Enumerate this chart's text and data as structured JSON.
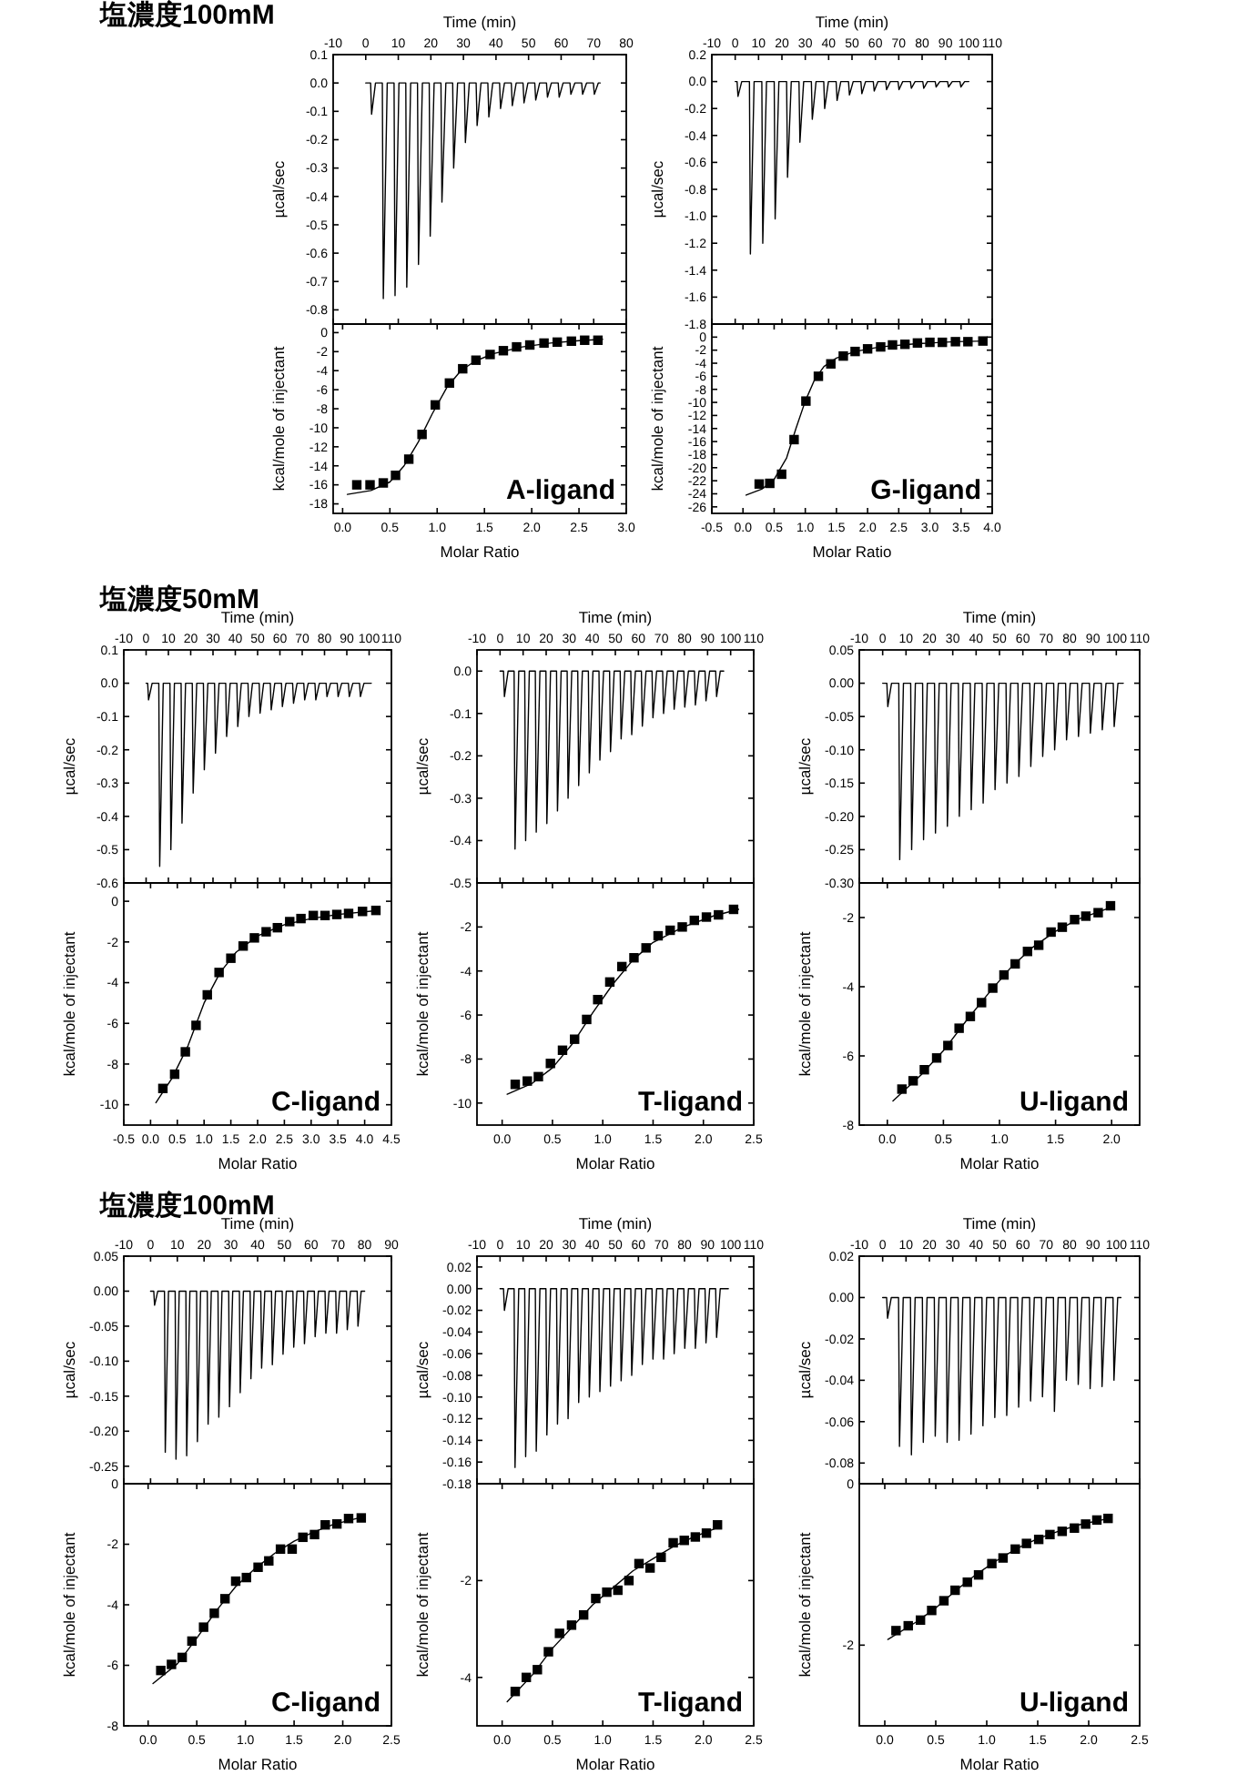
{
  "chart_data": [
    {
      "type": "line",
      "title": "塩濃度100mM",
      "xlabel": "Time (min)",
      "ylabel": "µcal/sec",
      "xlim": [
        -10,
        80
      ],
      "ylim": [
        -0.85,
        0.1
      ],
      "xticks": [
        -10,
        0,
        10,
        20,
        30,
        40,
        50,
        60,
        70,
        80
      ],
      "yticks": [
        0.1,
        {
          "value": 0,
          "label": "0.0"
        },
        -0.1,
        -0.2,
        -0.3,
        -0.4,
        -0.5,
        -0.6,
        -0.7,
        -0.8
      ],
      "series": [
        {
          "color": "#000000",
          "x": [
            0,
            1.5,
            1.8,
            3,
            5.1,
            5.4,
            6.6,
            8.7,
            9,
            10.2,
            12.3,
            12.6,
            13.8,
            15.9,
            16.2,
            17.4,
            19.5,
            19.8,
            21,
            23.1,
            23.4,
            24.6,
            26.7,
            27,
            28.2,
            30.3,
            30.6,
            31.8,
            33.9,
            34.2,
            35.4,
            37.5,
            37.8,
            39,
            41.1,
            41.4,
            42.6,
            44.7,
            45,
            46.2,
            48.3,
            48.6,
            49.8,
            51.9,
            52.2,
            53.4,
            55.5,
            55.8,
            57,
            59.1,
            59.4,
            60.6,
            62.7,
            63,
            64.2,
            66.3,
            66.6,
            67.8,
            69.9,
            70.2,
            71.4,
            72
          ],
          "values": [
            0,
            0,
            -0.11,
            0,
            0,
            -0.76,
            0,
            0,
            -0.75,
            0,
            0,
            -0.72,
            0,
            0,
            -0.64,
            0,
            0,
            -0.54,
            0,
            0,
            -0.42,
            0,
            0,
            -0.3,
            0,
            0,
            -0.21,
            0,
            0,
            -0.15,
            0,
            0,
            -0.12,
            0,
            0,
            -0.09,
            0,
            0,
            -0.08,
            0,
            0,
            -0.07,
            0,
            0,
            -0.06,
            0,
            0,
            -0.05,
            0,
            0,
            -0.05,
            0,
            0,
            -0.04,
            0,
            0,
            -0.04,
            0,
            0,
            -0.04,
            0,
            0
          ]
        }
      ]
    },
    {
      "type": "scatter",
      "xlabel": "Molar Ratio",
      "ylabel": "kcal/mole of injectant",
      "xlim": [
        -0.1,
        3
      ],
      "ylim": [
        -19,
        0.9
      ],
      "xticks": [
        {
          "value": 0,
          "label": "0.0"
        },
        0.5,
        {
          "value": 1,
          "label": "1.0"
        },
        1.5,
        {
          "value": 2,
          "label": "2.0"
        },
        2.5,
        {
          "value": 3,
          "label": "3.0"
        }
      ],
      "yticks": [
        0,
        -2,
        -4,
        -6,
        -8,
        -10,
        -12,
        -14,
        -16,
        -18
      ],
      "annotations": [
        "A-ligand"
      ],
      "series": [
        {
          "color": "#000000",
          "marker": "square",
          "x": [
            0.15,
            0.29,
            0.43,
            0.56,
            0.7,
            0.84,
            0.98,
            1.13,
            1.27,
            1.41,
            1.56,
            1.7,
            1.84,
            1.98,
            2.13,
            2.27,
            2.42,
            2.56,
            2.7
          ],
          "values": [
            -16,
            -16,
            -15.8,
            -15,
            -13.3,
            -10.7,
            -7.6,
            -5.3,
            -3.8,
            -2.9,
            -2.3,
            -1.9,
            -1.5,
            -1.3,
            -1.1,
            -1,
            -0.9,
            -0.8,
            -0.8
          ]
        },
        {
          "type": "line",
          "color": "#000000",
          "x": [
            0.05,
            0.3,
            0.5,
            0.65,
            0.8,
            0.95,
            1.1,
            1.25,
            1.4,
            1.6,
            1.9,
            2.2,
            2.5,
            2.75
          ],
          "values": [
            -17,
            -16.6,
            -15.7,
            -14,
            -11.5,
            -8.5,
            -5.8,
            -4,
            -3,
            -2.2,
            -1.5,
            -1.1,
            -0.85,
            -0.7
          ]
        }
      ]
    },
    {
      "type": "line",
      "xlabel": "Time (min)",
      "ylabel": "µcal/sec",
      "xlim": [
        -10,
        110
      ],
      "ylim": [
        -1.8,
        0.2
      ],
      "xticks": [
        -10,
        0,
        10,
        20,
        30,
        40,
        50,
        60,
        70,
        80,
        90,
        100,
        110
      ],
      "yticks": [
        0.2,
        {
          "value": 0,
          "label": "0.0"
        },
        -0.2,
        -0.4,
        -0.6,
        -0.8,
        {
          "value": -1,
          "label": "-1.0"
        },
        -1.2,
        -1.4,
        -1.6,
        -1.8
      ],
      "series": [
        {
          "color": "#000000",
          "x": [
            0,
            0.8,
            1.2,
            2.8,
            6.1,
            6.5,
            8.1,
            11.4,
            11.8,
            13.4,
            16.7,
            17.1,
            18.7,
            22,
            22.4,
            24,
            27.3,
            27.7,
            29.3,
            32.6,
            33,
            34.6,
            37.9,
            38.3,
            39.9,
            43.2,
            43.6,
            45.2,
            48.5,
            48.9,
            50.5,
            53.8,
            54.2,
            55.8,
            59.1,
            59.5,
            61.1,
            64.4,
            64.8,
            66.4,
            69.7,
            70.1,
            71.7,
            75,
            75.4,
            77,
            80.3,
            80.7,
            82.3,
            85.6,
            86,
            87.6,
            90.9,
            91.3,
            92.9,
            96.2,
            96.6,
            98.2,
            100
          ],
          "values": [
            0,
            0,
            -0.11,
            0,
            0,
            -1.28,
            0,
            0,
            -1.2,
            0,
            0,
            -1.02,
            0,
            0,
            -0.71,
            0,
            0,
            -0.45,
            0,
            0,
            -0.28,
            0,
            0,
            -0.2,
            0,
            0,
            -0.14,
            0,
            0,
            -0.1,
            0,
            0,
            -0.09,
            0,
            0,
            -0.07,
            0,
            0,
            -0.06,
            0,
            0,
            -0.06,
            0,
            0,
            -0.05,
            0,
            0,
            -0.05,
            0,
            0,
            -0.04,
            0,
            0,
            -0.04,
            0,
            0,
            -0.04,
            0,
            0
          ]
        }
      ]
    },
    {
      "type": "scatter",
      "xlabel": "Molar Ratio",
      "ylabel": "kcal/mole of injectant",
      "xlim": [
        -0.5,
        4
      ],
      "ylim": [
        -27,
        2
      ],
      "xticks": [
        -0.5,
        {
          "value": 0,
          "label": "0.0"
        },
        0.5,
        {
          "value": 1,
          "label": "1.0"
        },
        1.5,
        {
          "value": 2,
          "label": "2.0"
        },
        2.5,
        {
          "value": 3,
          "label": "3.0"
        },
        3.5,
        {
          "value": 4,
          "label": "4.0"
        }
      ],
      "yticks": [
        0,
        -2,
        -4,
        -6,
        -8,
        -10,
        -12,
        -14,
        -16,
        -18,
        -20,
        -22,
        -24,
        -26
      ],
      "annotations": [
        "G-ligand"
      ],
      "series": [
        {
          "color": "#000000",
          "marker": "square",
          "x": [
            0.26,
            0.43,
            0.62,
            0.82,
            1.01,
            1.21,
            1.41,
            1.61,
            1.8,
            2,
            2.21,
            2.4,
            2.6,
            2.8,
            3,
            3.2,
            3.41,
            3.61,
            3.85
          ],
          "values": [
            -22.5,
            -22.4,
            -21,
            -15.7,
            -9.8,
            -6,
            -4.1,
            -2.9,
            -2.2,
            -1.8,
            -1.5,
            -1.2,
            -1.1,
            -0.9,
            -0.8,
            -0.8,
            -0.7,
            -0.7,
            -0.6
          ]
        },
        {
          "type": "line",
          "color": "#000000",
          "x": [
            0.05,
            0.3,
            0.5,
            0.7,
            0.85,
            1,
            1.15,
            1.3,
            1.5,
            1.8,
            2.2,
            2.8,
            3.4,
            3.9
          ],
          "values": [
            -24.2,
            -23.3,
            -21.8,
            -18.5,
            -14,
            -9.8,
            -6.5,
            -4.5,
            -3.2,
            -2.2,
            -1.5,
            -1,
            -0.7,
            -0.6
          ]
        }
      ]
    },
    {
      "type": "line",
      "title": "塩濃度50mM",
      "xlabel": "Time (min)",
      "ylabel": "µcal/sec",
      "xlim": [
        -10,
        110
      ],
      "ylim": [
        -0.6,
        0.1
      ],
      "xticks": [
        -10,
        0,
        10,
        20,
        30,
        40,
        50,
        60,
        70,
        80,
        90,
        100,
        110
      ],
      "yticks": [
        0.1,
        {
          "value": 0,
          "label": "0.0"
        },
        -0.1,
        -0.2,
        -0.3,
        -0.4,
        -0.5,
        -0.6
      ],
      "series": [
        {
          "color": "#000000",
          "x": [
            0,
            0.7,
            1.1,
            2.7,
            5.7,
            6.1,
            7.7,
            10.7,
            11.1,
            12.7,
            15.7,
            16.1,
            17.7,
            20.7,
            21.1,
            22.7,
            25.7,
            26.1,
            27.7,
            30.7,
            31.1,
            32.7,
            35.7,
            36.1,
            37.7,
            40.7,
            41.1,
            42.7,
            45.7,
            46.1,
            47.7,
            50.7,
            51.1,
            52.7,
            55.7,
            56.1,
            57.7,
            60.7,
            61.1,
            62.7,
            65.7,
            66.1,
            67.7,
            70.7,
            71.1,
            72.7,
            75.7,
            76.1,
            77.7,
            80.7,
            81.1,
            82.7,
            85.7,
            86.1,
            87.7,
            90.7,
            91.1,
            92.7,
            95.7,
            96.1,
            97.7,
            101
          ],
          "values": [
            0,
            0,
            -0.05,
            0,
            0,
            -0.55,
            0,
            0,
            -0.5,
            0,
            0,
            -0.42,
            0,
            0,
            -0.33,
            0,
            0,
            -0.26,
            0,
            0,
            -0.21,
            0,
            0,
            -0.16,
            0,
            0,
            -0.13,
            0,
            0,
            -0.1,
            0,
            0,
            -0.09,
            0,
            0,
            -0.08,
            0,
            0,
            -0.07,
            0,
            0,
            -0.06,
            0,
            0,
            -0.05,
            0,
            0,
            -0.05,
            0,
            0,
            -0.04,
            0,
            0,
            -0.04,
            0,
            0,
            -0.04,
            0,
            0,
            -0.04,
            0,
            0
          ]
        }
      ]
    },
    {
      "type": "scatter",
      "xlabel": "Molar Ratio",
      "ylabel": "kcal/mole of injectant",
      "xlim": [
        -0.5,
        4.5
      ],
      "ylim": [
        -11,
        0.9
      ],
      "xticks": [
        -0.5,
        {
          "value": 0,
          "label": "0.0"
        },
        0.5,
        {
          "value": 1,
          "label": "1.0"
        },
        1.5,
        {
          "value": 2,
          "label": "2.0"
        },
        2.5,
        {
          "value": 3,
          "label": "3.0"
        },
        3.5,
        {
          "value": 4,
          "label": "4.0"
        },
        4.5
      ],
      "yticks": [
        0,
        -2,
        -4,
        -6,
        -8,
        -10
      ],
      "annotations": [
        "C-ligand"
      ],
      "series": [
        {
          "color": "#000000",
          "marker": "square",
          "x": [
            0.23,
            0.45,
            0.65,
            0.85,
            1.06,
            1.28,
            1.5,
            1.73,
            1.94,
            2.16,
            2.37,
            2.6,
            2.81,
            3.04,
            3.26,
            3.48,
            3.7,
            3.96,
            4.21
          ],
          "values": [
            -9.2,
            -8.5,
            -7.4,
            -6.1,
            -4.6,
            -3.5,
            -2.8,
            -2.2,
            -1.8,
            -1.5,
            -1.3,
            -1,
            -0.85,
            -0.7,
            -0.7,
            -0.65,
            -0.6,
            -0.5,
            -0.45
          ]
        },
        {
          "type": "line",
          "color": "#000000",
          "x": [
            0.1,
            0.4,
            0.7,
            1,
            1.3,
            1.6,
            2,
            2.5,
            3,
            3.5,
            4.25
          ],
          "values": [
            -9.9,
            -8.7,
            -7.1,
            -5,
            -3.5,
            -2.5,
            -1.7,
            -1.15,
            -0.85,
            -0.65,
            -0.45
          ]
        }
      ]
    },
    {
      "type": "line",
      "xlabel": "Time (min)",
      "ylabel": "µcal/sec",
      "xlim": [
        -10,
        110
      ],
      "ylim": [
        -0.5,
        0.05
      ],
      "xticks": [
        -10,
        0,
        10,
        20,
        30,
        40,
        50,
        60,
        70,
        80,
        90,
        100,
        110
      ],
      "yticks": [
        {
          "value": 0,
          "label": "0.0"
        },
        -0.1,
        -0.2,
        -0.3,
        -0.4,
        -0.5
      ],
      "series": [
        {
          "color": "#000000",
          "x": [
            0,
            1.5,
            1.9,
            3.5,
            6.1,
            6.5,
            8.1,
            10.7,
            11.1,
            12.7,
            15.3,
            15.7,
            17.3,
            19.9,
            20.3,
            21.9,
            24.5,
            24.9,
            26.5,
            29.1,
            29.5,
            31.1,
            33.7,
            34.1,
            35.7,
            38.3,
            38.7,
            40.3,
            42.9,
            43.3,
            44.9,
            47.5,
            47.9,
            49.5,
            52.1,
            52.5,
            54.1,
            56.7,
            57.1,
            58.7,
            61.3,
            61.7,
            63.3,
            65.9,
            66.3,
            67.9,
            70.5,
            70.9,
            72.5,
            75.1,
            75.5,
            77.1,
            79.7,
            80.1,
            81.7,
            84.3,
            84.7,
            86.3,
            88.9,
            89.3,
            90.9,
            93.5,
            93.9,
            95.5,
            97
          ],
          "values": [
            0,
            0,
            -0.06,
            0,
            0,
            -0.42,
            0,
            0,
            -0.4,
            0,
            0,
            -0.38,
            0,
            0,
            -0.36,
            0,
            0,
            -0.33,
            0,
            0,
            -0.3,
            0,
            0,
            -0.27,
            0,
            0,
            -0.24,
            0,
            0,
            -0.21,
            0,
            0,
            -0.19,
            0,
            0,
            -0.16,
            0,
            0,
            -0.15,
            0,
            0,
            -0.13,
            0,
            0,
            -0.11,
            0,
            0,
            -0.1,
            0,
            0,
            -0.09,
            0,
            0,
            -0.085,
            0,
            0,
            -0.08,
            0,
            0,
            -0.07,
            0,
            0,
            -0.06,
            0,
            0
          ]
        }
      ]
    },
    {
      "type": "scatter",
      "xlabel": "Molar Ratio",
      "ylabel": "kcal/mole of injectant",
      "xlim": [
        -0.25,
        2.5
      ],
      "ylim": [
        -11,
        0
      ],
      "xticks": [
        {
          "value": 0,
          "label": "0.0"
        },
        0.5,
        {
          "value": 1,
          "label": "1.0"
        },
        1.5,
        {
          "value": 2,
          "label": "2.0"
        },
        2.5
      ],
      "yticks": [
        -2,
        -4,
        -6,
        -8,
        -10
      ],
      "annotations": [
        "T-ligand"
      ],
      "series": [
        {
          "color": "#000000",
          "marker": "square",
          "x": [
            0.13,
            0.25,
            0.36,
            0.48,
            0.6,
            0.72,
            0.84,
            0.95,
            1.07,
            1.19,
            1.31,
            1.43,
            1.55,
            1.67,
            1.79,
            1.91,
            2.03,
            2.15,
            2.3
          ],
          "values": [
            -9.15,
            -9,
            -8.8,
            -8.2,
            -7.6,
            -7.1,
            -6.2,
            -5.3,
            -4.5,
            -3.8,
            -3.4,
            -2.95,
            -2.4,
            -2.15,
            -2,
            -1.7,
            -1.55,
            -1.45,
            -1.2
          ]
        },
        {
          "type": "line",
          "color": "#000000",
          "x": [
            0.05,
            0.3,
            0.5,
            0.7,
            0.9,
            1.1,
            1.3,
            1.5,
            1.8,
            2.1,
            2.35
          ],
          "values": [
            -9.6,
            -9.1,
            -8.4,
            -7.3,
            -5.9,
            -4.6,
            -3.5,
            -2.7,
            -2,
            -1.5,
            -1.2
          ]
        }
      ]
    },
    {
      "type": "line",
      "xlabel": "Time (min)",
      "ylabel": "µcal/sec",
      "xlim": [
        -10,
        110
      ],
      "ylim": [
        -0.3,
        0.05
      ],
      "xticks": [
        -10,
        0,
        10,
        20,
        30,
        40,
        50,
        60,
        70,
        80,
        90,
        100,
        110
      ],
      "yticks": [
        0.05,
        {
          "value": 0,
          "label": "0.00"
        },
        -0.05,
        {
          "value": -0.1,
          "label": "-0.10"
        },
        -0.15,
        {
          "value": -0.2,
          "label": "-0.20"
        },
        -0.25,
        {
          "value": -0.3,
          "label": "-0.30"
        }
      ],
      "series": [
        {
          "color": "#000000",
          "x": [
            0,
            1.8,
            2.2,
            3.8,
            6.9,
            7.3,
            8.9,
            12,
            12.4,
            14,
            17.1,
            17.5,
            19.1,
            22.2,
            22.6,
            24.2,
            27.3,
            27.7,
            29.3,
            32.4,
            32.8,
            34.4,
            37.5,
            37.9,
            39.5,
            42.6,
            43,
            44.6,
            47.7,
            48.1,
            49.7,
            52.8,
            53.2,
            54.8,
            57.9,
            58.3,
            59.9,
            63,
            63.4,
            65,
            68.1,
            68.5,
            70.1,
            73.2,
            73.6,
            75.2,
            78.3,
            78.7,
            80.3,
            83.4,
            83.8,
            85.4,
            88.5,
            88.9,
            90.5,
            93.6,
            94,
            95.6,
            98.7,
            99.1,
            100.7,
            103
          ],
          "values": [
            0,
            0,
            -0.035,
            0,
            0,
            -0.265,
            0,
            0,
            -0.25,
            0,
            0,
            -0.235,
            0,
            0,
            -0.225,
            0,
            0,
            -0.215,
            0,
            0,
            -0.2,
            0,
            0,
            -0.19,
            0,
            0,
            -0.18,
            0,
            0,
            -0.16,
            0,
            0,
            -0.15,
            0,
            0,
            -0.14,
            0,
            0,
            -0.125,
            0,
            0,
            -0.11,
            0,
            0,
            -0.1,
            0,
            0,
            -0.085,
            0,
            0,
            -0.08,
            0,
            0,
            -0.075,
            0,
            0,
            -0.07,
            0,
            0,
            -0.065,
            0,
            0
          ]
        }
      ]
    },
    {
      "type": "scatter",
      "xlabel": "Molar Ratio",
      "ylabel": "kcal/mole of injectant",
      "xlim": [
        -0.25,
        2.25
      ],
      "ylim": [
        -8,
        -1
      ],
      "xticks": [
        {
          "value": 0,
          "label": "0.0"
        },
        0.5,
        {
          "value": 1,
          "label": "1.0"
        },
        1.5,
        {
          "value": 2,
          "label": "2.0"
        }
      ],
      "yticks": [
        -2,
        -4,
        -6,
        -8
      ],
      "annotations": [
        "U-ligand"
      ],
      "series": [
        {
          "color": "#000000",
          "marker": "square",
          "x": [
            0.13,
            0.23,
            0.33,
            0.44,
            0.54,
            0.64,
            0.74,
            0.84,
            0.94,
            1.04,
            1.14,
            1.25,
            1.35,
            1.46,
            1.56,
            1.67,
            1.77,
            1.88,
            1.99
          ],
          "values": [
            -6.96,
            -6.72,
            -6.4,
            -6.06,
            -5.7,
            -5.2,
            -4.86,
            -4.46,
            -4.04,
            -3.66,
            -3.34,
            -2.98,
            -2.8,
            -2.42,
            -2.28,
            -2.06,
            -1.96,
            -1.86,
            -1.66
          ]
        },
        {
          "type": "line",
          "color": "#000000",
          "x": [
            0.05,
            0.3,
            0.5,
            0.7,
            0.9,
            1.1,
            1.3,
            1.5,
            1.7,
            2
          ],
          "values": [
            -7.3,
            -6.55,
            -5.85,
            -5,
            -4.2,
            -3.45,
            -2.85,
            -2.4,
            -2.05,
            -1.7
          ]
        }
      ]
    },
    {
      "type": "line",
      "title": "塩濃度100mM",
      "xlabel": "Time (min)",
      "ylabel": "µcal/sec",
      "xlim": [
        -10,
        90
      ],
      "ylim": [
        -0.275,
        0.05
      ],
      "xticks": [
        -10,
        0,
        10,
        20,
        30,
        40,
        50,
        60,
        70,
        80,
        90
      ],
      "yticks": [
        0.05,
        {
          "value": 0,
          "label": "0.00"
        },
        -0.05,
        {
          "value": -0.1,
          "label": "-0.10"
        },
        -0.15,
        {
          "value": -0.2,
          "label": "-0.20"
        },
        -0.25
      ],
      "series": [
        {
          "color": "#000000",
          "x": [
            0,
            1.2,
            1.5,
            2.7,
            5.2,
            5.5,
            6.7,
            9.2,
            9.5,
            10.7,
            13.2,
            13.5,
            14.7,
            17.2,
            17.5,
            18.7,
            21.2,
            21.5,
            22.7,
            25.2,
            25.5,
            26.7,
            29.2,
            29.5,
            30.7,
            33.2,
            33.5,
            34.7,
            37.2,
            37.5,
            38.7,
            41.2,
            41.5,
            42.7,
            45.2,
            45.5,
            46.7,
            49.2,
            49.5,
            50.7,
            53.2,
            53.5,
            54.7,
            57.2,
            57.5,
            58.7,
            61.2,
            61.5,
            62.7,
            65.2,
            65.5,
            66.7,
            69.2,
            69.5,
            70.7,
            73.2,
            73.5,
            74.7,
            77.2,
            77.5,
            78.7,
            80
          ],
          "values": [
            0,
            0,
            -0.02,
            0,
            0,
            -0.23,
            0,
            0,
            -0.24,
            0,
            0,
            -0.235,
            0,
            0,
            -0.215,
            0,
            0,
            -0.19,
            0,
            0,
            -0.18,
            0,
            0,
            -0.165,
            0,
            0,
            -0.145,
            0,
            0,
            -0.125,
            0,
            0,
            -0.11,
            0,
            0,
            -0.105,
            0,
            0,
            -0.09,
            0,
            0,
            -0.08,
            0,
            0,
            -0.075,
            0,
            0,
            -0.065,
            0,
            0,
            -0.06,
            0,
            0,
            -0.06,
            0,
            0,
            -0.055,
            0,
            0,
            -0.05,
            0,
            0
          ]
        }
      ]
    },
    {
      "type": "scatter",
      "xlabel": "Molar Ratio",
      "ylabel": "kcal/mole of injectant",
      "xlim": [
        -0.25,
        2.5
      ],
      "ylim": [
        -8,
        0
      ],
      "xticks": [
        {
          "value": 0,
          "label": "0.0"
        },
        0.5,
        {
          "value": 1,
          "label": "1.0"
        },
        1.5,
        {
          "value": 2,
          "label": "2.0"
        },
        2.5
      ],
      "yticks": [
        0,
        -2,
        -4,
        -6,
        -8
      ],
      "annotations": [
        "C-ligand"
      ],
      "series": [
        {
          "color": "#000000",
          "marker": "square",
          "x": [
            0.13,
            0.24,
            0.35,
            0.45,
            0.57,
            0.68,
            0.79,
            0.9,
            1.01,
            1.13,
            1.24,
            1.36,
            1.48,
            1.59,
            1.71,
            1.82,
            1.94,
            2.06,
            2.19
          ],
          "values": [
            -6.17,
            -5.97,
            -5.74,
            -5.2,
            -4.74,
            -4.28,
            -3.8,
            -3.22,
            -3.1,
            -2.76,
            -2.55,
            -2.16,
            -2.16,
            -1.77,
            -1.68,
            -1.36,
            -1.33,
            -1.15,
            -1.13
          ]
        },
        {
          "type": "line",
          "color": "#000000",
          "x": [
            0.05,
            0.3,
            0.5,
            0.7,
            0.9,
            1.1,
            1.3,
            1.5,
            1.7,
            1.9,
            2.2
          ],
          "values": [
            -6.6,
            -5.95,
            -5.1,
            -4.2,
            -3.4,
            -2.8,
            -2.3,
            -1.9,
            -1.6,
            -1.35,
            -1.1
          ]
        }
      ]
    },
    {
      "type": "line",
      "xlabel": "Time (min)",
      "ylabel": "µcal/sec",
      "xlim": [
        -10,
        110
      ],
      "ylim": [
        -0.18,
        0.03
      ],
      "xticks": [
        -10,
        0,
        10,
        20,
        30,
        40,
        50,
        60,
        70,
        80,
        90,
        100,
        110
      ],
      "yticks": [
        0.02,
        {
          "value": 0,
          "label": "0.00"
        },
        -0.02,
        -0.04,
        -0.06,
        -0.08,
        {
          "value": -0.1,
          "label": "-0.10"
        },
        -0.12,
        -0.14,
        -0.16,
        -0.18
      ],
      "series": [
        {
          "color": "#000000",
          "x": [
            0,
            1.5,
            1.9,
            3.5,
            6.1,
            6.5,
            8.1,
            10.7,
            11.1,
            12.7,
            15.3,
            15.7,
            17.3,
            19.9,
            20.3,
            21.9,
            24.5,
            24.9,
            26.5,
            29.1,
            29.5,
            31.1,
            33.7,
            34.1,
            35.7,
            38.3,
            38.7,
            40.3,
            42.9,
            43.3,
            44.9,
            47.5,
            47.9,
            49.5,
            52.1,
            52.5,
            54.1,
            56.7,
            57.1,
            58.7,
            61.3,
            61.7,
            63.3,
            65.9,
            66.3,
            67.9,
            70.5,
            70.9,
            72.5,
            75.1,
            75.5,
            77.1,
            79.7,
            80.1,
            81.7,
            84.3,
            84.7,
            86.3,
            88.9,
            89.3,
            90.9,
            93.5,
            93.9,
            95.5,
            99
          ],
          "values": [
            0,
            0,
            -0.02,
            0,
            0,
            -0.165,
            0,
            0,
            -0.155,
            0,
            0,
            -0.15,
            0,
            0,
            -0.135,
            0,
            0,
            -0.125,
            0,
            0,
            -0.12,
            0,
            0,
            -0.105,
            0,
            0,
            -0.1,
            0,
            0,
            -0.095,
            0,
            0,
            -0.09,
            0,
            0,
            -0.085,
            0,
            0,
            -0.08,
            0,
            0,
            -0.07,
            0,
            0,
            -0.065,
            0,
            0,
            -0.065,
            0,
            0,
            -0.06,
            0,
            0,
            -0.055,
            0,
            0,
            -0.055,
            0,
            0,
            -0.05,
            0,
            0,
            -0.045,
            0,
            0
          ]
        }
      ]
    },
    {
      "type": "scatter",
      "xlabel": "Molar Ratio",
      "ylabel": "kcal/mole of injectant",
      "xlim": [
        -0.25,
        2.5
      ],
      "ylim": [
        -5,
        0
      ],
      "xticks": [
        {
          "value": 0,
          "label": "0.0"
        },
        0.5,
        {
          "value": 1,
          "label": "1.0"
        },
        1.5,
        {
          "value": 2,
          "label": "2.0"
        },
        2.5
      ],
      "yticks": [
        -2,
        -4
      ],
      "annotations": [
        "T-ligand"
      ],
      "series": [
        {
          "color": "#000000",
          "marker": "square",
          "x": [
            0.13,
            0.24,
            0.35,
            0.46,
            0.57,
            0.69,
            0.81,
            0.93,
            1.04,
            1.15,
            1.26,
            1.36,
            1.47,
            1.58,
            1.7,
            1.81,
            1.92,
            2.03,
            2.14
          ],
          "values": [
            -4.29,
            -4,
            -3.84,
            -3.47,
            -3.09,
            -2.92,
            -2.71,
            -2.37,
            -2.24,
            -2.2,
            -2,
            -1.65,
            -1.74,
            -1.52,
            -1.22,
            -1.17,
            -1.1,
            -1.02,
            -0.85
          ]
        },
        {
          "type": "line",
          "color": "#000000",
          "x": [
            0.05,
            0.3,
            0.5,
            0.7,
            0.9,
            1.1,
            1.3,
            1.5,
            1.7,
            1.9,
            2.15
          ],
          "values": [
            -4.5,
            -3.95,
            -3.4,
            -2.95,
            -2.5,
            -2.15,
            -1.8,
            -1.55,
            -1.3,
            -1.1,
            -0.9
          ]
        }
      ]
    },
    {
      "type": "line",
      "xlabel": "Time (min)",
      "ylabel": "µcal/sec",
      "xlim": [
        -10,
        110
      ],
      "ylim": [
        -0.09,
        0.02
      ],
      "xticks": [
        -10,
        0,
        10,
        20,
        30,
        40,
        50,
        60,
        70,
        80,
        90,
        100,
        110
      ],
      "yticks": [
        0.02,
        {
          "value": 0,
          "label": "0.00"
        },
        -0.02,
        -0.04,
        -0.06,
        -0.08
      ],
      "series": [
        {
          "color": "#000000",
          "x": [
            0,
            1.7,
            2.1,
            3.7,
            6.8,
            7.2,
            8.8,
            11.9,
            12.3,
            13.9,
            17,
            17.4,
            19,
            22.1,
            22.5,
            24.1,
            27.2,
            27.6,
            29.2,
            32.3,
            32.7,
            34.3,
            37.4,
            37.8,
            39.4,
            42.5,
            42.9,
            44.5,
            47.6,
            48,
            49.6,
            52.7,
            53.1,
            54.7,
            57.8,
            58.2,
            59.8,
            62.9,
            63.3,
            64.9,
            68,
            68.4,
            70,
            73.1,
            73.5,
            75.1,
            78.2,
            78.6,
            80.2,
            83.3,
            83.7,
            85.3,
            88.4,
            88.8,
            90.4,
            93.5,
            93.9,
            95.5,
            98.6,
            99,
            100.6,
            102
          ],
          "values": [
            0,
            0,
            -0.01,
            0,
            0,
            -0.072,
            0,
            0,
            -0.076,
            0,
            0,
            -0.07,
            0,
            0,
            -0.067,
            0,
            0,
            -0.07,
            0,
            0,
            -0.069,
            0,
            0,
            -0.066,
            0,
            0,
            -0.062,
            0,
            0,
            -0.058,
            0,
            0,
            -0.057,
            0,
            0,
            -0.053,
            0,
            0,
            -0.05,
            0,
            0,
            -0.048,
            0,
            0,
            -0.055,
            0,
            0,
            -0.04,
            0,
            0,
            -0.042,
            0,
            0,
            -0.044,
            0,
            0,
            -0.043,
            0,
            0,
            -0.04,
            0,
            0
          ]
        }
      ]
    },
    {
      "type": "scatter",
      "xlabel": "Molar Ratio",
      "ylabel": "kcal/mole of injectant",
      "xlim": [
        -0.25,
        2.5
      ],
      "ylim": [
        -3,
        0
      ],
      "xticks": [
        {
          "value": 0,
          "label": "0.0"
        },
        0.5,
        {
          "value": 1,
          "label": "1.0"
        },
        1.5,
        {
          "value": 2,
          "label": "2.0"
        },
        2.5
      ],
      "yticks": [
        0,
        -2
      ],
      "annotations": [
        "U-ligand"
      ],
      "series": [
        {
          "color": "#000000",
          "marker": "square",
          "x": [
            0.11,
            0.23,
            0.35,
            0.46,
            0.58,
            0.69,
            0.81,
            0.92,
            1.05,
            1.16,
            1.28,
            1.39,
            1.51,
            1.62,
            1.74,
            1.86,
            1.97,
            2.08,
            2.19
          ],
          "values": [
            -1.82,
            -1.76,
            -1.69,
            -1.57,
            -1.45,
            -1.32,
            -1.22,
            -1.13,
            -0.99,
            -0.92,
            -0.81,
            -0.74,
            -0.69,
            -0.63,
            -0.59,
            -0.55,
            -0.5,
            -0.45,
            -0.43
          ]
        },
        {
          "type": "line",
          "color": "#000000",
          "x": [
            0.03,
            0.3,
            0.5,
            0.7,
            0.9,
            1.1,
            1.3,
            1.5,
            1.7,
            1.9,
            2.2
          ],
          "values": [
            -1.93,
            -1.72,
            -1.54,
            -1.32,
            -1.12,
            -0.95,
            -0.8,
            -0.68,
            -0.59,
            -0.51,
            -0.43
          ]
        }
      ]
    }
  ]
}
